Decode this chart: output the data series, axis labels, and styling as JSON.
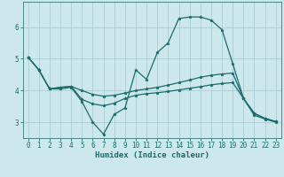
{
  "xlabel": "Humidex (Indice chaleur)",
  "background_color": "#cce8ec",
  "grid_color": "#aacdd4",
  "line_color": "#1a6b6b",
  "xlim": [
    -0.5,
    23.5
  ],
  "ylim": [
    2.5,
    6.8
  ],
  "xticks": [
    0,
    1,
    2,
    3,
    4,
    5,
    6,
    7,
    8,
    9,
    10,
    11,
    12,
    13,
    14,
    15,
    16,
    17,
    18,
    19,
    20,
    21,
    22,
    23
  ],
  "yticks": [
    3,
    4,
    5,
    6
  ],
  "series": [
    [
      5.05,
      4.65,
      4.05,
      4.05,
      4.1,
      3.65,
      3.0,
      2.62,
      3.25,
      3.45,
      4.65,
      4.35,
      5.2,
      5.5,
      6.27,
      6.32,
      6.32,
      6.22,
      5.92,
      4.85,
      3.75,
      3.22,
      3.1,
      3.0
    ],
    [
      5.05,
      4.65,
      4.05,
      4.1,
      4.13,
      4.0,
      3.88,
      3.82,
      3.85,
      3.92,
      4.0,
      4.05,
      4.1,
      4.17,
      4.25,
      4.33,
      4.42,
      4.48,
      4.52,
      4.55,
      3.75,
      3.28,
      3.12,
      3.02
    ],
    [
      5.05,
      4.65,
      4.05,
      4.1,
      4.13,
      3.72,
      3.58,
      3.52,
      3.6,
      3.75,
      3.85,
      3.9,
      3.93,
      3.97,
      4.02,
      4.07,
      4.12,
      4.18,
      4.22,
      4.25,
      3.75,
      3.28,
      3.12,
      3.02
    ]
  ]
}
